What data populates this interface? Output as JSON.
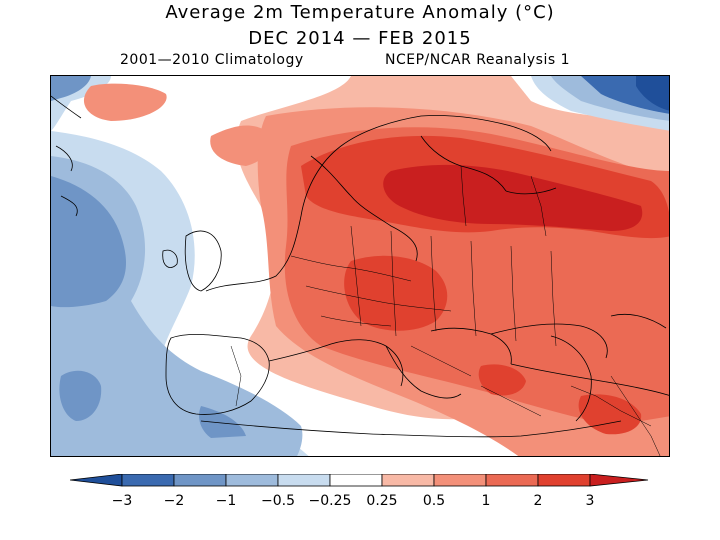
{
  "title": {
    "line1": "Average 2m Temperature Anomaly (°C)",
    "line2": "DEC 2014 — FEB 2015"
  },
  "subtitle": {
    "left": "2001—2010 Climatology",
    "right": "NCEP/NCAR Reanalysis 1"
  },
  "colors": {
    "m3": "#1f4f9a",
    "m2": "#3a6ab0",
    "m1": "#6f95c6",
    "m05": "#9ebbdc",
    "m025": "#c8dcef",
    "zero": "#ffffff",
    "p025": "#f8b9a6",
    "p05": "#f39079",
    "p1": "#eb6a54",
    "p2": "#e0412f",
    "p3": "#c91f1f"
  },
  "colorbar": {
    "ticks": [
      "−3",
      "−2",
      "−1",
      "−0.5",
      "−0.25",
      "0.25",
      "0.5",
      "1",
      "2",
      "3"
    ]
  }
}
